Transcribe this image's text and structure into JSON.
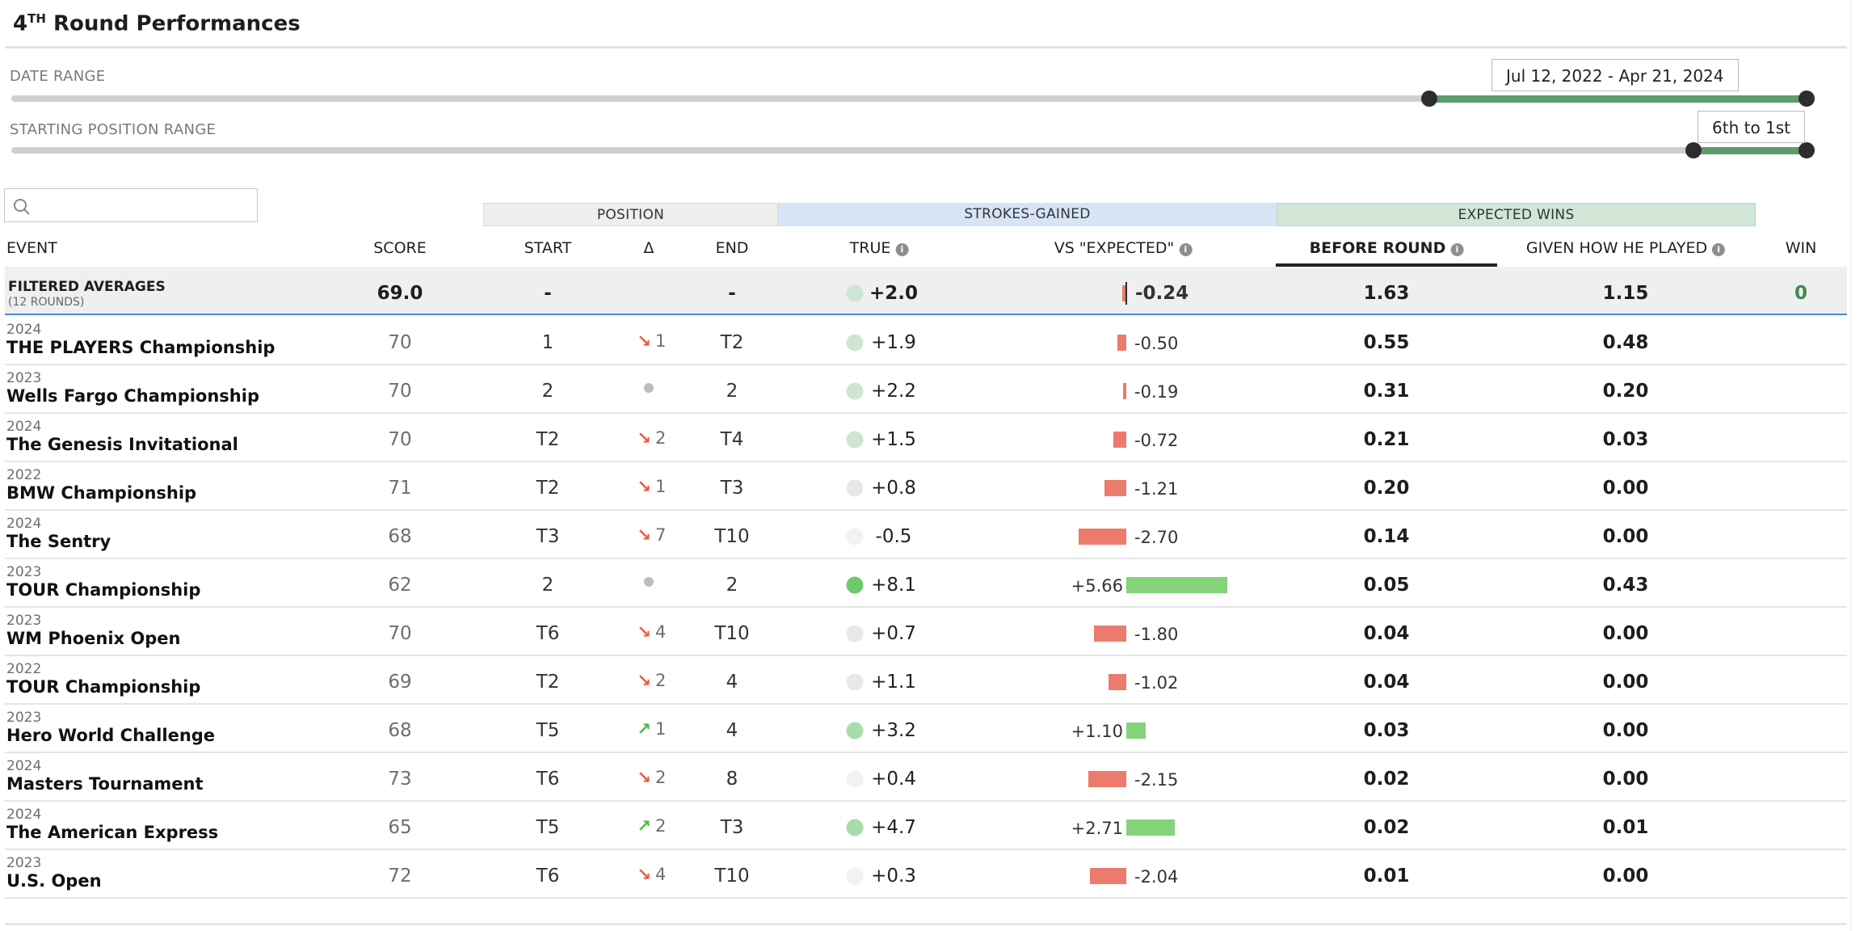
{
  "title": {
    "main": "4",
    "sup": "TH",
    "rest": " Round Performances"
  },
  "filters": {
    "date_range": {
      "label": "DATE RANGE",
      "value": "Jul 12, 2022 - Apr 21, 2024",
      "lower_fraction": 0.79,
      "upper_fraction": 1.0
    },
    "position_range": {
      "label": "STARTING POSITION RANGE",
      "value": "6th to 1st",
      "lower_fraction": 0.937,
      "upper_fraction": 1.0
    }
  },
  "search": {
    "placeholder": "",
    "value": ""
  },
  "column_groups": {
    "position": "POSITION",
    "strokes_gained": "STROKES-GAINED",
    "expected_wins": "EXPECTED WINS"
  },
  "columns": {
    "event": "EVENT",
    "score": "SCORE",
    "start": "START",
    "delta": "Δ",
    "end": "END",
    "true": "TRUE",
    "vs_expected": "VS \"EXPECTED\"",
    "before_round": "BEFORE ROUND",
    "given_how_he_played": "GIVEN HOW HE PLAYED",
    "win": "WIN"
  },
  "averages": {
    "label": "FILTERED AVERAGES",
    "sublabel": "(12 ROUNDS)",
    "score": "69.0",
    "start": "-",
    "end": "-",
    "true": "+2.0",
    "true_value": 2.0,
    "vs_expected": "-0.24",
    "vs_expected_value": -0.24,
    "before_round": "1.63",
    "given": "1.15",
    "win": "0"
  },
  "rows": [
    {
      "year": "2024",
      "event": "THE PLAYERS Championship",
      "score": "70",
      "start": "1",
      "delta_dir": "down",
      "delta": "1",
      "end": "T2",
      "true": "+1.9",
      "true_value": 1.9,
      "vs": "-0.50",
      "vs_value": -0.5,
      "before": "0.55",
      "given": "0.48"
    },
    {
      "year": "2023",
      "event": "Wells Fargo Championship",
      "score": "70",
      "start": "2",
      "delta_dir": "none",
      "delta": "",
      "end": "2",
      "true": "+2.2",
      "true_value": 2.2,
      "vs": "-0.19",
      "vs_value": -0.19,
      "before": "0.31",
      "given": "0.20"
    },
    {
      "year": "2024",
      "event": "The Genesis Invitational",
      "score": "70",
      "start": "T2",
      "delta_dir": "down",
      "delta": "2",
      "end": "T4",
      "true": "+1.5",
      "true_value": 1.5,
      "vs": "-0.72",
      "vs_value": -0.72,
      "before": "0.21",
      "given": "0.03"
    },
    {
      "year": "2022",
      "event": "BMW Championship",
      "score": "71",
      "start": "T2",
      "delta_dir": "down",
      "delta": "1",
      "end": "T3",
      "true": "+0.8",
      "true_value": 0.8,
      "vs": "-1.21",
      "vs_value": -1.21,
      "before": "0.20",
      "given": "0.00"
    },
    {
      "year": "2024",
      "event": "The Sentry",
      "score": "68",
      "start": "T3",
      "delta_dir": "down",
      "delta": "7",
      "end": "T10",
      "true": "-0.5",
      "true_value": -0.5,
      "vs": "-2.70",
      "vs_value": -2.7,
      "before": "0.14",
      "given": "0.00"
    },
    {
      "year": "2023",
      "event": "TOUR Championship",
      "score": "62",
      "start": "2",
      "delta_dir": "none",
      "delta": "",
      "end": "2",
      "true": "+8.1",
      "true_value": 8.1,
      "vs": "+5.66",
      "vs_value": 5.66,
      "before": "0.05",
      "given": "0.43"
    },
    {
      "year": "2023",
      "event": "WM Phoenix Open",
      "score": "70",
      "start": "T6",
      "delta_dir": "down",
      "delta": "4",
      "end": "T10",
      "true": "+0.7",
      "true_value": 0.7,
      "vs": "-1.80",
      "vs_value": -1.8,
      "before": "0.04",
      "given": "0.00"
    },
    {
      "year": "2022",
      "event": "TOUR Championship",
      "score": "69",
      "start": "T2",
      "delta_dir": "down",
      "delta": "2",
      "end": "4",
      "true": "+1.1",
      "true_value": 1.1,
      "vs": "-1.02",
      "vs_value": -1.02,
      "before": "0.04",
      "given": "0.00"
    },
    {
      "year": "2023",
      "event": "Hero World Challenge",
      "score": "68",
      "start": "T5",
      "delta_dir": "up",
      "delta": "1",
      "end": "4",
      "true": "+3.2",
      "true_value": 3.2,
      "vs": "+1.10",
      "vs_value": 1.1,
      "before": "0.03",
      "given": "0.00"
    },
    {
      "year": "2024",
      "event": "Masters Tournament",
      "score": "73",
      "start": "T6",
      "delta_dir": "down",
      "delta": "2",
      "end": "8",
      "true": "+0.4",
      "true_value": 0.4,
      "vs": "-2.15",
      "vs_value": -2.15,
      "before": "0.02",
      "given": "0.00"
    },
    {
      "year": "2024",
      "event": "The American Express",
      "score": "65",
      "start": "T5",
      "delta_dir": "up",
      "delta": "2",
      "end": "T3",
      "true": "+4.7",
      "true_value": 4.7,
      "vs": "+2.71",
      "vs_value": 2.71,
      "before": "0.02",
      "given": "0.01"
    },
    {
      "year": "2023",
      "event": "U.S. Open",
      "score": "72",
      "start": "T6",
      "delta_dir": "down",
      "delta": "4",
      "end": "T10",
      "true": "+0.3",
      "true_value": 0.3,
      "vs": "-2.04",
      "vs_value": -2.04,
      "before": "0.01",
      "given": "0.00"
    }
  ],
  "icons": {
    "search": "search-icon",
    "info": "info-icon",
    "arrow_down": "arrow-down-right-icon",
    "arrow_up": "arrow-up-right-icon"
  },
  "colors": {
    "positive_bar": "#84d27a",
    "negative_bar": "#ec7a6d",
    "slider_fill": "#5e9b6f",
    "win": "#3f8a57",
    "sort_underline": "#222222"
  }
}
